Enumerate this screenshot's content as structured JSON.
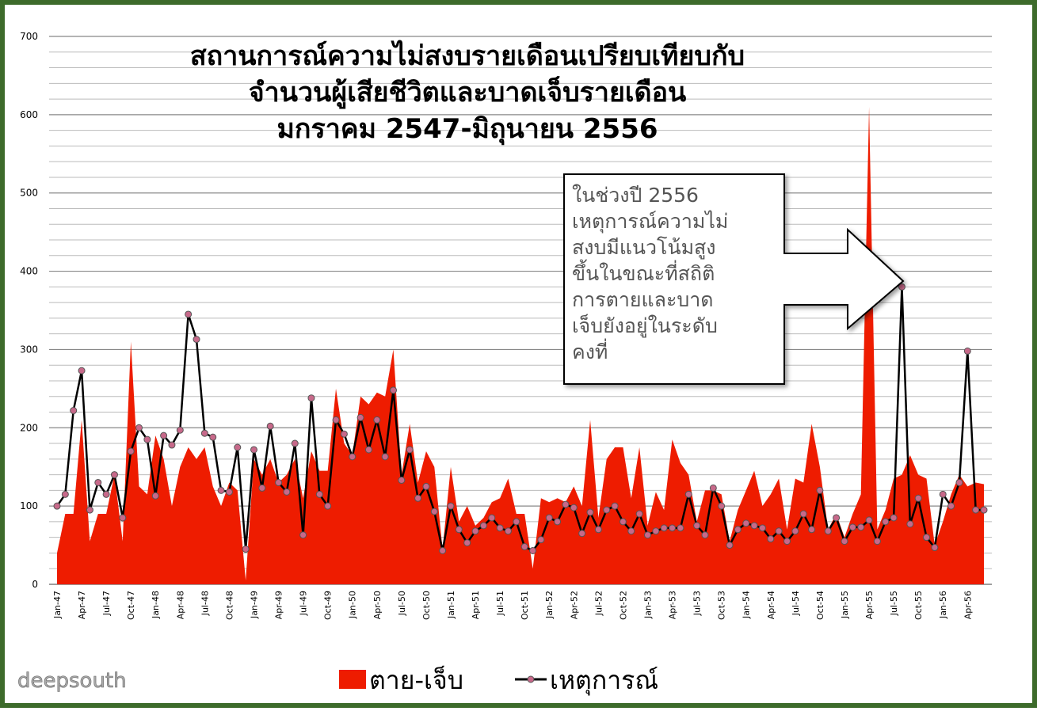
{
  "chart_data": {
    "type": "area-line",
    "title": [
      "สถานการณ์ความไม่สงบรายเดือนเปรียบเทียบกับ",
      "จำนวนผู้เสียชีวิตและบาดเจ็บรายเดือน",
      "มกราคม 2547-มิถุนายน 2556"
    ],
    "categories": [
      "Jan-47",
      null,
      null,
      "Apr-47",
      null,
      null,
      "Jul-47",
      null,
      null,
      "Oct-47",
      null,
      null,
      "Jan-48",
      null,
      null,
      "Apr-48",
      null,
      null,
      "Jul-48",
      null,
      null,
      "Oct-48",
      null,
      null,
      "Jan-49",
      null,
      null,
      "Apr-49",
      null,
      null,
      "Jul-49",
      null,
      null,
      "Oct-49",
      null,
      null,
      "Jan-50",
      null,
      null,
      "Apr-50",
      null,
      null,
      "Jul-50",
      null,
      null,
      "Oct-50",
      null,
      null,
      "Jan-51",
      null,
      null,
      "Apr-51",
      null,
      null,
      "Jul-51",
      null,
      null,
      "Oct-51",
      null,
      null,
      "Jan-52",
      null,
      null,
      "Apr-52",
      null,
      null,
      "Jul-52",
      null,
      null,
      "Oct-52",
      null,
      null,
      "Jan-53",
      null,
      null,
      "Apr-53",
      null,
      null,
      "Jul-53",
      null,
      null,
      "Oct-53",
      null,
      null,
      "Jan-54",
      null,
      null,
      "Apr-54",
      null,
      null,
      "Jul-54",
      null,
      null,
      "Oct-54",
      null,
      null,
      "Jan-55",
      null,
      null,
      "Apr-55",
      null,
      null,
      "Jul-55",
      null,
      null,
      "Oct-55",
      null,
      null,
      "Jan-56",
      null,
      null,
      "Apr-56",
      null,
      null
    ],
    "series": [
      {
        "name": "ตาย-เจ็บ",
        "color": "#ee1c00",
        "kind": "area",
        "values": [
          40,
          90,
          90,
          210,
          55,
          90,
          90,
          140,
          55,
          310,
          125,
          115,
          190,
          160,
          100,
          150,
          175,
          160,
          175,
          125,
          100,
          130,
          120,
          5,
          160,
          140,
          160,
          130,
          140,
          160,
          110,
          170,
          145,
          145,
          250,
          180,
          165,
          240,
          230,
          245,
          240,
          300,
          140,
          205,
          130,
          170,
          150,
          45,
          150,
          80,
          100,
          75,
          85,
          105,
          110,
          135,
          90,
          90,
          20,
          110,
          105,
          110,
          105,
          125,
          100,
          210,
          85,
          160,
          175,
          175,
          110,
          175,
          75,
          118,
          95,
          185,
          155,
          140,
          80,
          120,
          120,
          115,
          55,
          95,
          120,
          145,
          100,
          115,
          135,
          70,
          135,
          130,
          205,
          150,
          70,
          90,
          60,
          90,
          115,
          610,
          70,
          95,
          135,
          140,
          165,
          140,
          135,
          50,
          80,
          115,
          140,
          125,
          130,
          128
        ]
      },
      {
        "name": "เหตุการณ์",
        "color": "#000000",
        "marker_color": "#c7698a",
        "kind": "line",
        "values": [
          100,
          115,
          222,
          273,
          95,
          130,
          115,
          140,
          85,
          170,
          200,
          185,
          113,
          190,
          178,
          197,
          345,
          313,
          193,
          188,
          120,
          118,
          175,
          45,
          172,
          123,
          202,
          130,
          118,
          180,
          63,
          238,
          115,
          100,
          210,
          192,
          163,
          213,
          172,
          210,
          163,
          248,
          133,
          172,
          110,
          125,
          93,
          43,
          100,
          70,
          53,
          68,
          75,
          85,
          72,
          68,
          80,
          48,
          43,
          57,
          85,
          80,
          102,
          98,
          65,
          92,
          70,
          95,
          100,
          80,
          68,
          90,
          63,
          68,
          72,
          72,
          72,
          115,
          75,
          63,
          123,
          100,
          50,
          70,
          78,
          75,
          72,
          58,
          68,
          55,
          68,
          90,
          70,
          120,
          68,
          85,
          55,
          73,
          73,
          82,
          55,
          80,
          85,
          380,
          77,
          110,
          60,
          47,
          115,
          100,
          130,
          298,
          95,
          95
        ]
      }
    ],
    "ylim": [
      0,
      700
    ],
    "yticks": [
      0,
      100,
      200,
      300,
      400,
      500,
      600,
      700
    ],
    "grid": true,
    "annotation": [
      "ในช่วงปี 2556",
      "เหตุการณ์ความไม่",
      "สงบมีแนวโน้มสูง",
      "ขึ้นในขณะที่สถิติ",
      "การตายและบาด",
      "เจ็บยังอยู่ในระดับ",
      "คงที่"
    ],
    "logo": "deepsouth"
  }
}
